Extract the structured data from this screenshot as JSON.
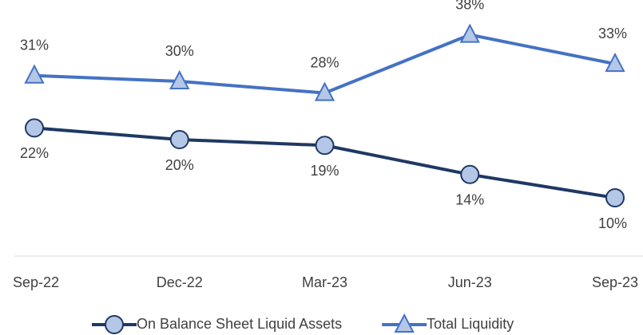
{
  "chart_data": {
    "type": "line",
    "categories": [
      "Sep-22",
      "Dec-22",
      "Mar-23",
      "Jun-23",
      "Sep-23"
    ],
    "series": [
      {
        "name": "On Balance Sheet Liquid Assets",
        "color": "#1f3864",
        "marker": "circle",
        "values": [
          22,
          20,
          19,
          14,
          10
        ],
        "value_labels": [
          "22%",
          "20%",
          "19%",
          "14%",
          "10%"
        ]
      },
      {
        "name": "Total Liquidity",
        "color": "#4472c4",
        "marker": "triangle",
        "values": [
          31,
          30,
          28,
          38,
          33
        ],
        "value_labels": [
          "31%",
          "30%",
          "28%",
          "38%",
          "33%"
        ]
      }
    ],
    "ylim": [
      0,
      40
    ],
    "grid": false,
    "legend": "bottom"
  }
}
